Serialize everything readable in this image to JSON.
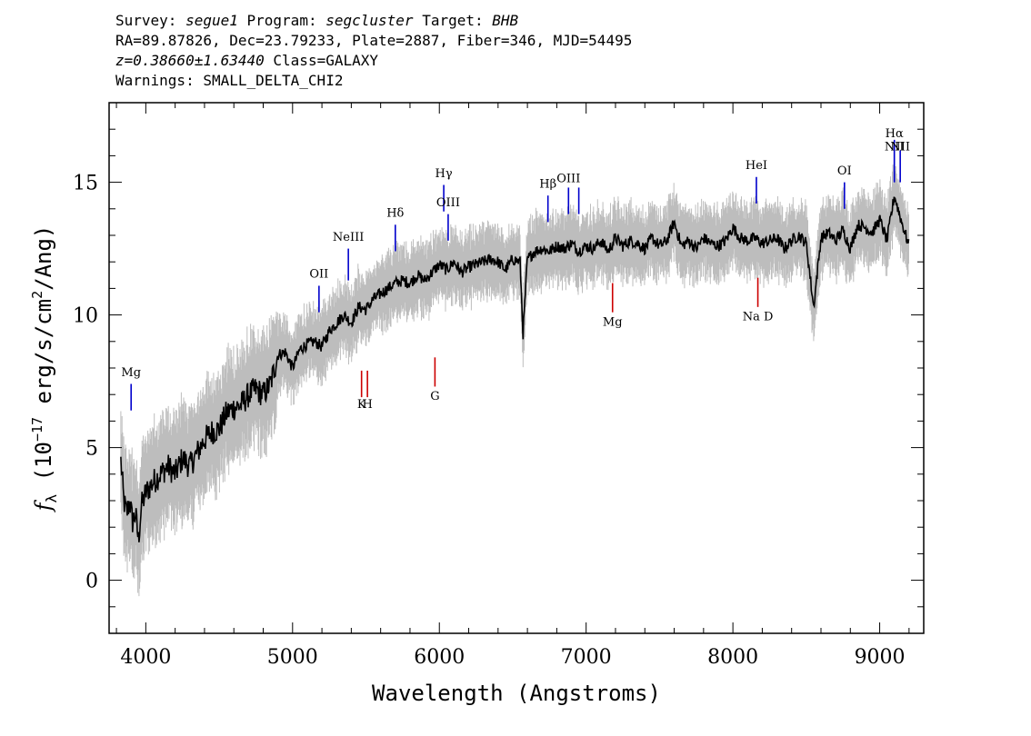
{
  "header": {
    "survey_label": "Survey:",
    "survey": "segue1",
    "program_label": "Program:",
    "program": "segcluster",
    "target_label": "Target:",
    "target": "BHB",
    "line2": "RA=89.87826, Dec=23.79233, Plate=2887, Fiber=346, MJD=54495",
    "redshift": "z=0.38660±1.63440",
    "class_text": "Class=GALAXY",
    "warnings": "Warnings: SMALL_DELTA_CHI2"
  },
  "chart_data": {
    "type": "line",
    "xlabel": "Wavelength (Angstroms)",
    "ylabel_parts": {
      "f": "f",
      "sub": "λ",
      "pre": " (10",
      "exp": "−17",
      "mid": " erg/s/cm",
      "exp2": "2",
      "post": "/Ang)"
    },
    "xlim": [
      3750,
      9300
    ],
    "ylim": [
      -2,
      18
    ],
    "xticks": [
      4000,
      5000,
      6000,
      7000,
      8000,
      9000
    ],
    "yticks": [
      0,
      5,
      10,
      15
    ],
    "grid": false,
    "series": [
      {
        "role": "flux",
        "color": "#000000",
        "x": [
          3830,
          3850,
          3870,
          3890,
          3910,
          3930,
          3950,
          3970,
          4000,
          4050,
          4100,
          4150,
          4200,
          4250,
          4300,
          4350,
          4400,
          4450,
          4500,
          4550,
          4600,
          4650,
          4700,
          4750,
          4800,
          4850,
          4900,
          4950,
          5000,
          5050,
          5100,
          5150,
          5200,
          5250,
          5300,
          5350,
          5400,
          5450,
          5500,
          5550,
          5600,
          5650,
          5700,
          5750,
          5800,
          5850,
          5900,
          5950,
          6000,
          6050,
          6100,
          6150,
          6200,
          6250,
          6300,
          6350,
          6400,
          6450,
          6500,
          6550,
          6570,
          6600,
          6650,
          6700,
          6750,
          6800,
          6850,
          6900,
          6950,
          7000,
          7050,
          7100,
          7150,
          7200,
          7250,
          7300,
          7350,
          7400,
          7450,
          7500,
          7550,
          7600,
          7650,
          7700,
          7750,
          7800,
          7850,
          7900,
          7950,
          8000,
          8050,
          8100,
          8150,
          8200,
          8250,
          8300,
          8350,
          8400,
          8450,
          8500,
          8550,
          8600,
          8650,
          8700,
          8750,
          8800,
          8850,
          8900,
          8950,
          9000,
          9050,
          9100,
          9150,
          9200
        ],
        "values": [
          4.5,
          3.0,
          2.5,
          3.0,
          2.2,
          2.5,
          1.5,
          2.8,
          3.3,
          3.7,
          4.0,
          4.3,
          4.0,
          4.6,
          4.3,
          4.8,
          5.3,
          5.6,
          5.7,
          6.3,
          6.5,
          6.6,
          7.0,
          7.2,
          7.0,
          7.4,
          8.5,
          8.6,
          8.0,
          8.7,
          8.9,
          9.0,
          8.8,
          9.4,
          9.7,
          10.0,
          9.7,
          10.3,
          10.2,
          10.6,
          10.8,
          11.0,
          11.2,
          11.3,
          11.2,
          11.5,
          11.3,
          11.6,
          11.9,
          11.7,
          12.0,
          11.6,
          11.8,
          11.9,
          12.0,
          12.1,
          12.0,
          11.7,
          12.1,
          12.0,
          9.3,
          12.1,
          12.4,
          12.5,
          12.4,
          12.6,
          12.5,
          12.7,
          12.4,
          12.6,
          12.5,
          12.8,
          12.4,
          12.9,
          12.6,
          12.8,
          12.7,
          12.5,
          12.9,
          12.6,
          12.8,
          13.5,
          12.6,
          12.8,
          12.5,
          12.9,
          12.7,
          12.6,
          12.8,
          13.3,
          12.9,
          12.8,
          12.9,
          12.7,
          12.8,
          12.9,
          12.5,
          12.8,
          13.0,
          12.7,
          10.3,
          12.9,
          13.1,
          12.8,
          13.2,
          12.5,
          13.4,
          13.3,
          13.1,
          13.6,
          12.8,
          14.5,
          13.5,
          12.6
        ]
      }
    ],
    "lines": [
      {
        "label": "Mg",
        "x": 3900,
        "color": "#0000cc",
        "y1": 6.4,
        "y2": 7.4,
        "label_y": 7.7
      },
      {
        "label": "OII",
        "x": 5180,
        "color": "#0000cc",
        "y1": 10.1,
        "y2": 11.1,
        "label_y": 11.4
      },
      {
        "label": "NeIII",
        "x": 5380,
        "color": "#0000cc",
        "y1": 11.3,
        "y2": 12.5,
        "label_y": 12.8
      },
      {
        "label": "Hδ",
        "x": 5700,
        "color": "#0000cc",
        "y1": 12.4,
        "y2": 13.4,
        "label_y": 13.7
      },
      {
        "label": "Hγ",
        "x": 6030,
        "color": "#0000cc",
        "y1": 13.9,
        "y2": 14.9,
        "label_y": 15.2
      },
      {
        "label": "OIII",
        "x": 6060,
        "color": "#0000cc",
        "y1": 12.8,
        "y2": 13.8,
        "label_y": 14.1
      },
      {
        "label": "Hβ",
        "x": 6740,
        "color": "#0000cc",
        "y1": 13.5,
        "y2": 14.5,
        "label_y": 14.8
      },
      {
        "label": "OIII",
        "x": 6880,
        "color": "#0000cc",
        "y1": 13.8,
        "y2": 14.8,
        "label_y": 15.0
      },
      {
        "label": "",
        "x": 6950,
        "color": "#0000cc",
        "y1": 13.8,
        "y2": 14.8
      },
      {
        "label": "HeI",
        "x": 8160,
        "color": "#0000cc",
        "y1": 14.2,
        "y2": 15.2,
        "label_y": 15.5
      },
      {
        "label": "OI",
        "x": 8760,
        "color": "#0000cc",
        "y1": 14.0,
        "y2": 15.0,
        "label_y": 15.3
      },
      {
        "label": "NII",
        "x": 9100,
        "color": "#0000cc",
        "y1": 15.0,
        "y2": 16.4,
        "label_y": 16.2
      },
      {
        "label": "Hα",
        "x": 9100,
        "color": "#0000cc",
        "y1": 15.0,
        "y2": 16.6,
        "label_y": 16.7
      },
      {
        "label": "NII",
        "x": 9140,
        "color": "#0000cc",
        "y1": 15.0,
        "y2": 16.2,
        "label_y": 16.2
      },
      {
        "label": "K",
        "x": 5470,
        "color": "#cc0000",
        "y1": 6.9,
        "y2": 7.9,
        "label_y": 6.5
      },
      {
        "label": "H",
        "x": 5510,
        "color": "#cc0000",
        "y1": 6.9,
        "y2": 7.9,
        "label_y": 6.5
      },
      {
        "label": "G",
        "x": 5970,
        "color": "#cc0000",
        "y1": 7.3,
        "y2": 8.4,
        "label_y": 6.8
      },
      {
        "label": "Mg",
        "x": 7180,
        "color": "#cc0000",
        "y1": 10.1,
        "y2": 11.2,
        "label_y": 9.6
      },
      {
        "label": "Na D",
        "x": 8170,
        "color": "#cc0000",
        "y1": 10.3,
        "y2": 11.4,
        "label_y": 9.8
      }
    ],
    "colors": {
      "flux": "#000000",
      "error_band": "#bdbdbd",
      "emission": "#0000cc",
      "absorption": "#cc0000"
    }
  }
}
